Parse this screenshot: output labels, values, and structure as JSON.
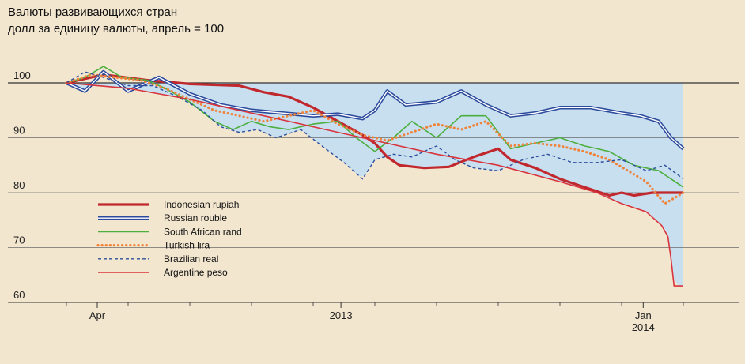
{
  "chart_data": {
    "type": "line",
    "title": "Валюты развивающихся стран",
    "subtitle": "долл за единицу валюты, апрель = 100",
    "xlabel": "",
    "ylabel": "",
    "ylim": [
      60,
      103
    ],
    "xlim": [
      0,
      1
    ],
    "y_ticks": [
      60,
      70,
      80,
      90,
      100
    ],
    "x_ticks": [
      {
        "pos": 0.05,
        "label": "Apr",
        "sub": ""
      },
      {
        "pos": 0.445,
        "label": "2013",
        "sub": ""
      },
      {
        "pos": 0.935,
        "label": "Jan",
        "sub": "2014"
      }
    ],
    "grid": true,
    "legend_position": "bottom-left",
    "shaded_band": {
      "color": "#c8dff0",
      "top": 100
    },
    "series": [
      {
        "name": "Indonesian rupiah",
        "color": "#c0282e",
        "style": "solid",
        "x": [
          0,
          0.06,
          0.13,
          0.2,
          0.28,
          0.32,
          0.36,
          0.4,
          0.44,
          0.48,
          0.5,
          0.52,
          0.54,
          0.58,
          0.62,
          0.66,
          0.7,
          0.72,
          0.76,
          0.8,
          0.84,
          0.88,
          0.9,
          0.92,
          0.95,
          0.97,
          1.0
        ],
        "values": [
          100,
          101.5,
          100.5,
          99.8,
          99.5,
          98.3,
          97.5,
          95.5,
          93,
          90.5,
          89,
          86.5,
          85,
          84.5,
          84.7,
          86.5,
          88,
          86,
          84.5,
          82.5,
          81,
          79.5,
          80,
          79.5,
          80,
          80,
          80
        ]
      },
      {
        "name": "Russian rouble",
        "color": "#2b4a9c",
        "style": "double",
        "x": [
          0,
          0.03,
          0.06,
          0.1,
          0.15,
          0.2,
          0.25,
          0.3,
          0.35,
          0.4,
          0.44,
          0.48,
          0.5,
          0.52,
          0.55,
          0.6,
          0.64,
          0.68,
          0.72,
          0.76,
          0.8,
          0.85,
          0.9,
          0.93,
          0.96,
          0.98,
          1.0
        ],
        "values": [
          100,
          98.5,
          102,
          98.5,
          101,
          98,
          96,
          95,
          94.5,
          94,
          94.3,
          93.5,
          95,
          98.5,
          96,
          96.5,
          98.5,
          96,
          94,
          94.5,
          95.5,
          95.5,
          94.5,
          94,
          93,
          90,
          88
        ]
      },
      {
        "name": "South African rand",
        "color": "#4caf3e",
        "style": "solid",
        "x": [
          0,
          0.03,
          0.06,
          0.09,
          0.13,
          0.16,
          0.2,
          0.24,
          0.27,
          0.3,
          0.33,
          0.36,
          0.4,
          0.44,
          0.47,
          0.5,
          0.53,
          0.56,
          0.6,
          0.64,
          0.68,
          0.72,
          0.76,
          0.8,
          0.84,
          0.88,
          0.92,
          0.96,
          1.0
        ],
        "values": [
          100,
          101,
          103,
          101,
          100.5,
          99,
          96.5,
          93,
          91.5,
          93,
          92,
          91.5,
          92.5,
          93,
          90,
          87.5,
          90,
          93,
          90,
          94,
          94,
          88,
          89,
          90,
          88.5,
          87.5,
          85,
          84,
          81
        ]
      },
      {
        "name": "Turkish lira",
        "color": "#f0833a",
        "style": "dotted",
        "x": [
          0,
          0.04,
          0.08,
          0.12,
          0.16,
          0.2,
          0.24,
          0.28,
          0.32,
          0.36,
          0.4,
          0.44,
          0.48,
          0.52,
          0.56,
          0.6,
          0.64,
          0.68,
          0.72,
          0.76,
          0.8,
          0.84,
          0.88,
          0.91,
          0.94,
          0.97,
          1.0
        ],
        "values": [
          100,
          101.5,
          101,
          100.5,
          99,
          97,
          95,
          94,
          93,
          94,
          95,
          92.5,
          90.5,
          89.5,
          91,
          92.5,
          91.5,
          93,
          88.5,
          89,
          88.5,
          87.5,
          86,
          84,
          82,
          78,
          80
        ]
      },
      {
        "name": "Brazilian real",
        "color": "#2e4f9e",
        "style": "dashed",
        "x": [
          0,
          0.03,
          0.06,
          0.1,
          0.14,
          0.18,
          0.22,
          0.25,
          0.28,
          0.31,
          0.34,
          0.38,
          0.42,
          0.45,
          0.48,
          0.5,
          0.53,
          0.56,
          0.6,
          0.63,
          0.66,
          0.7,
          0.74,
          0.78,
          0.82,
          0.86,
          0.9,
          0.94,
          0.97,
          1.0
        ],
        "values": [
          100,
          102,
          101,
          99.5,
          99.5,
          97.5,
          95,
          92,
          91,
          91.5,
          90,
          91.5,
          88,
          85.5,
          82.5,
          86,
          87,
          86.5,
          88.5,
          86,
          84.5,
          84,
          86,
          87,
          85.5,
          85.5,
          86,
          84,
          85,
          82.5
        ]
      },
      {
        "name": "Argentine peso",
        "color": "#d9343b",
        "style": "solid",
        "x": [
          0,
          0.1,
          0.2,
          0.3,
          0.4,
          0.5,
          0.6,
          0.7,
          0.8,
          0.86,
          0.9,
          0.94,
          0.965,
          0.975,
          0.98,
          0.985,
          1.0
        ],
        "values": [
          100,
          99,
          97,
          94.5,
          92,
          89.5,
          87,
          85,
          82,
          80,
          78,
          76.5,
          74,
          72,
          68,
          63,
          63
        ]
      }
    ]
  }
}
